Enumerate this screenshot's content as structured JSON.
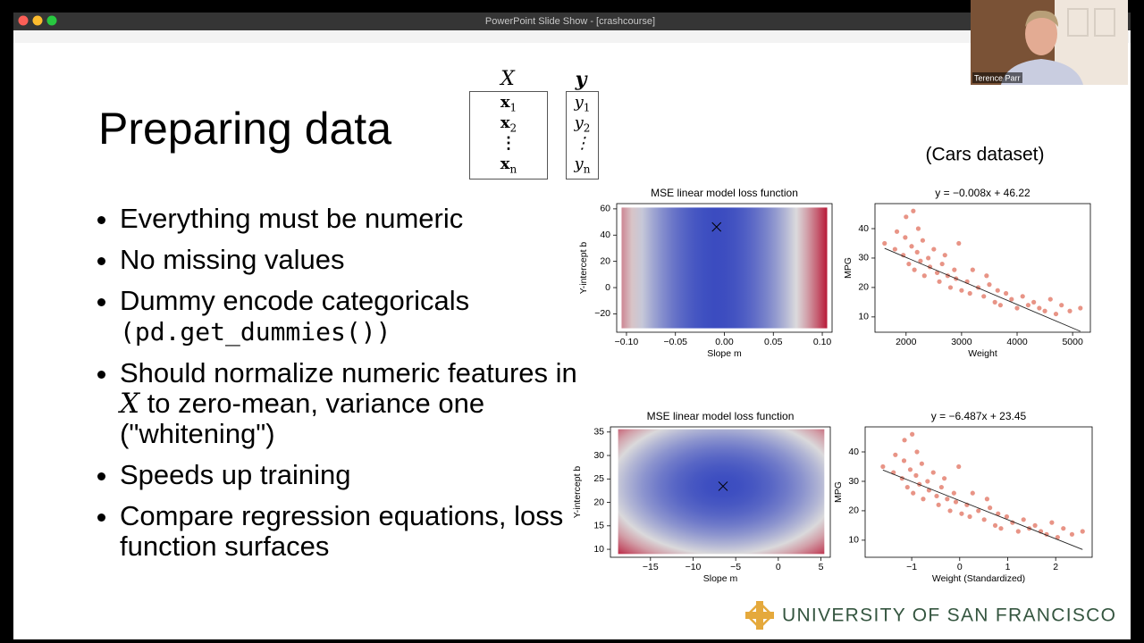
{
  "window": {
    "title": "PowerPoint Slide Show - [crashcourse]"
  },
  "webcam": {
    "name": "Terence Parr"
  },
  "slide": {
    "title": "Preparing data",
    "matrix": {
      "x_header": "X",
      "y_header": "y",
      "x_rows": [
        {
          "base": "x",
          "sub": "1"
        },
        {
          "base": "x",
          "sub": "2"
        },
        {
          "base": "⋮"
        },
        {
          "base": "x",
          "sub": "n"
        }
      ],
      "y_rows": [
        {
          "base": "y",
          "sub": "1"
        },
        {
          "base": "y",
          "sub": "2"
        },
        {
          "base": "⋮"
        },
        {
          "base": "y",
          "sub": "n"
        }
      ]
    },
    "bullets": [
      {
        "parts": [
          {
            "text": "Everything must be numeric"
          }
        ]
      },
      {
        "parts": [
          {
            "text": "No missing values"
          }
        ]
      },
      {
        "parts": [
          {
            "text": "Dummy encode categoricals "
          },
          {
            "text": "(pd.get_dummies())",
            "style": "code"
          }
        ]
      },
      {
        "parts": [
          {
            "text": "Should normalize numeric features in "
          },
          {
            "text": "X",
            "style": "italic"
          },
          {
            "text": " to zero-mean, variance one (\"whitening\")"
          }
        ]
      },
      {
        "parts": [
          {
            "text": "Speeds up training"
          }
        ]
      },
      {
        "parts": [
          {
            "text": "Compare regression equations, loss function surfaces"
          }
        ]
      }
    ],
    "dataset_label": "(Cars dataset)",
    "footer": "UNIVERSITY OF SAN FRANCISCO"
  },
  "chart_data": [
    {
      "type": "heatmap",
      "title": "MSE linear model loss function",
      "xlabel": "Slope m",
      "ylabel": "Y-intercept b",
      "colormap": "coolwarm",
      "shape": "bands",
      "xlim": [
        -0.11,
        0.11
      ],
      "ylim": [
        -34,
        64
      ],
      "extent": [
        -0.105,
        0.105,
        -31,
        61
      ],
      "xticks": [
        {
          "value": -0.1,
          "label": "−0.10"
        },
        {
          "value": -0.05,
          "label": "−0.05"
        },
        {
          "value": 0,
          "label": "0.00"
        },
        {
          "value": 0.05,
          "label": "0.05"
        },
        {
          "value": 0.1,
          "label": "0.10"
        }
      ],
      "yticks": [
        {
          "value": -20,
          "label": "−20"
        },
        0,
        20,
        40,
        60
      ],
      "minimum": {
        "x": -0.008,
        "y": 46.22
      }
    },
    {
      "type": "scatter",
      "title": "y = −0.008x + 46.22",
      "xlabel": "Weight",
      "ylabel": "MPG",
      "color": "#dc5a45",
      "xlim": [
        1440,
        5320
      ],
      "ylim": [
        4.8,
        48.5
      ],
      "xticks": [
        2000,
        3000,
        4000,
        5000
      ],
      "yticks": [
        10,
        20,
        30,
        40
      ],
      "x": [
        1613,
        1800,
        1835,
        1950,
        1985,
        2000,
        2050,
        2100,
        2130,
        2150,
        2200,
        2220,
        2260,
        2300,
        2330,
        2400,
        2430,
        2500,
        2560,
        2600,
        2650,
        2700,
        2750,
        2800,
        2870,
        2900,
        2950,
        3000,
        3100,
        3150,
        3200,
        3300,
        3400,
        3450,
        3500,
        3600,
        3650,
        3700,
        3800,
        3900,
        4000,
        4100,
        4200,
        4300,
        4400,
        4500,
        4600,
        4700,
        4800,
        4950,
        5140
      ],
      "y": [
        35,
        33,
        39,
        31,
        37,
        44,
        28,
        34,
        46,
        26,
        32,
        40,
        29,
        36,
        24,
        30,
        27,
        33,
        25,
        22,
        28,
        31,
        24,
        20,
        26,
        23,
        35,
        19,
        22,
        18,
        26,
        20,
        17,
        24,
        21,
        15,
        19,
        14,
        18,
        16,
        13,
        17,
        14,
        15,
        13,
        12,
        16,
        11,
        14,
        12,
        13
      ],
      "fit": {
        "slope": -0.008,
        "intercept": 46.22,
        "color": "#222222"
      }
    },
    {
      "type": "heatmap",
      "title": "MSE linear model loss function",
      "xlabel": "Slope m",
      "ylabel": "Y-intercept b",
      "colormap": "coolwarm",
      "shape": "ellipse",
      "xlim": [
        -19.7,
        6.1
      ],
      "ylim": [
        8.3,
        36.1
      ],
      "extent": [
        -18.8,
        5.4,
        9.0,
        35.6
      ],
      "xticks": [
        {
          "value": -15,
          "label": "−15"
        },
        {
          "value": -10,
          "label": "−10"
        },
        {
          "value": -5,
          "label": "−5"
        },
        0,
        5
      ],
      "yticks": [
        10,
        15,
        20,
        25,
        30,
        35
      ],
      "minimum": {
        "x": -6.487,
        "y": 23.45
      }
    },
    {
      "type": "scatter",
      "title": "y = −6.487x + 23.45",
      "xlabel": "Weight (Standardized)",
      "ylabel": "MPG",
      "color": "#dc5a45",
      "xlim": [
        -1.97,
        2.76
      ],
      "ylim": [
        4.2,
        48.5
      ],
      "xticks": [
        {
          "value": -1,
          "label": "−1"
        },
        0,
        1,
        2
      ],
      "yticks": [
        10,
        20,
        30,
        40
      ],
      "x": [
        -1.6,
        -1.38,
        -1.34,
        -1.2,
        -1.16,
        -1.15,
        -1.09,
        -1.03,
        -0.99,
        -0.97,
        -0.91,
        -0.89,
        -0.84,
        -0.79,
        -0.76,
        -0.67,
        -0.64,
        -0.55,
        -0.48,
        -0.44,
        -0.38,
        -0.32,
        -0.26,
        -0.2,
        -0.12,
        -0.08,
        -0.02,
        0.04,
        0.15,
        0.21,
        0.27,
        0.39,
        0.51,
        0.57,
        0.63,
        0.74,
        0.8,
        0.86,
        0.98,
        1.1,
        1.22,
        1.33,
        1.45,
        1.57,
        1.69,
        1.81,
        1.92,
        2.04,
        2.16,
        2.34,
        2.56
      ],
      "y": [
        35,
        33,
        39,
        31,
        37,
        44,
        28,
        34,
        46,
        26,
        32,
        40,
        29,
        36,
        24,
        30,
        27,
        33,
        25,
        22,
        28,
        31,
        24,
        20,
        26,
        23,
        35,
        19,
        22,
        18,
        26,
        20,
        17,
        24,
        21,
        15,
        19,
        14,
        18,
        16,
        13,
        17,
        14,
        15,
        13,
        12,
        16,
        11,
        14,
        12,
        13
      ],
      "fit": {
        "slope": -6.487,
        "intercept": 23.45,
        "color": "#222222"
      }
    }
  ]
}
